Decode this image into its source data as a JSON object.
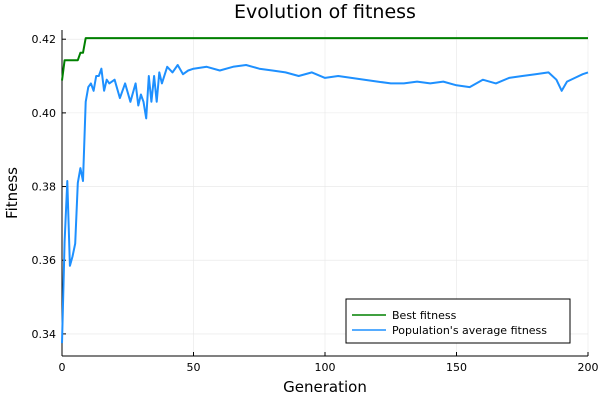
{
  "chart_data": {
    "type": "line",
    "title": "Evolution of fitness",
    "xlabel": "Generation",
    "ylabel": "Fitness",
    "xlim": [
      0,
      200
    ],
    "ylim": [
      0.334,
      0.4225
    ],
    "xticks": [
      0,
      50,
      100,
      150,
      200
    ],
    "yticks": [
      0.34,
      0.36,
      0.38,
      0.4,
      0.42
    ],
    "ytick_labels": [
      "0.34",
      "0.36",
      "0.38",
      "0.40",
      "0.42"
    ],
    "grid": true,
    "legend": "bottom-right",
    "series": [
      {
        "name": "Best fitness",
        "color": "#008000",
        "x": [
          0,
          1,
          2,
          3,
          4,
          5,
          6,
          7,
          8,
          9,
          10,
          200
        ],
        "y": [
          0.4088,
          0.4143,
          0.4143,
          0.4143,
          0.4143,
          0.4143,
          0.4143,
          0.4163,
          0.4163,
          0.4203,
          0.4203,
          0.4203
        ]
      },
      {
        "name": "Population's average fitness",
        "color": "#1e90ff",
        "x": [
          0,
          1,
          2,
          3,
          4,
          5,
          6,
          7,
          8,
          9,
          10,
          11,
          12,
          13,
          14,
          15,
          16,
          17,
          18,
          20,
          22,
          24,
          26,
          28,
          29,
          30,
          31,
          32,
          33,
          34,
          35,
          36,
          37,
          38,
          40,
          42,
          44,
          46,
          48,
          50,
          55,
          60,
          65,
          70,
          75,
          80,
          85,
          90,
          95,
          100,
          105,
          110,
          115,
          120,
          125,
          130,
          135,
          140,
          145,
          150,
          155,
          160,
          165,
          170,
          175,
          180,
          185,
          188,
          190,
          192,
          195,
          198,
          200
        ],
        "y": [
          0.3375,
          0.365,
          0.3815,
          0.3585,
          0.361,
          0.3645,
          0.381,
          0.385,
          0.3815,
          0.403,
          0.407,
          0.408,
          0.406,
          0.41,
          0.41,
          0.412,
          0.406,
          0.409,
          0.408,
          0.409,
          0.404,
          0.408,
          0.403,
          0.408,
          0.402,
          0.405,
          0.403,
          0.3985,
          0.41,
          0.403,
          0.41,
          0.403,
          0.411,
          0.408,
          0.4125,
          0.411,
          0.413,
          0.4105,
          0.4115,
          0.412,
          0.4125,
          0.4115,
          0.4125,
          0.413,
          0.412,
          0.4115,
          0.411,
          0.41,
          0.411,
          0.4095,
          0.41,
          0.4095,
          0.409,
          0.4085,
          0.408,
          0.408,
          0.4085,
          0.408,
          0.4085,
          0.4075,
          0.407,
          0.409,
          0.408,
          0.4095,
          0.41,
          0.4105,
          0.411,
          0.409,
          0.406,
          0.4085,
          0.4095,
          0.4105,
          0.411
        ]
      }
    ]
  }
}
